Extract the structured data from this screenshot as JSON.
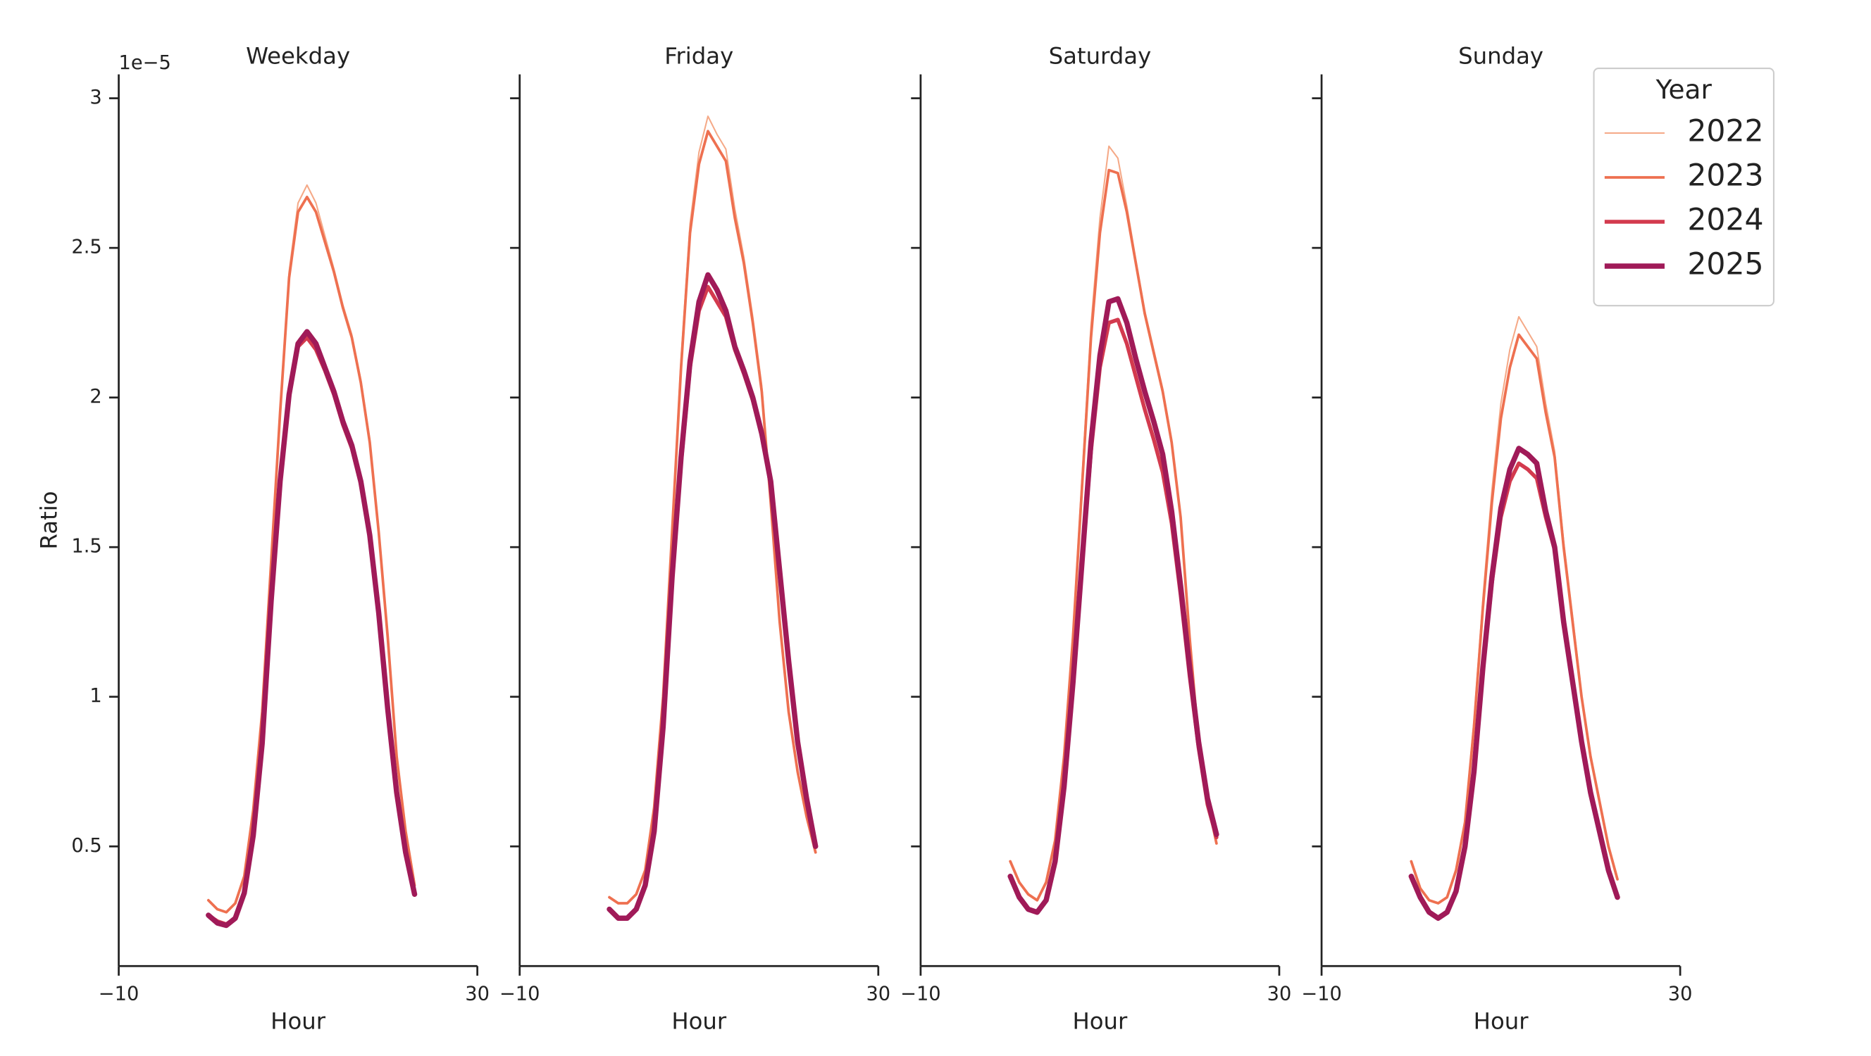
{
  "chart_data": [
    {
      "type": "line",
      "title": "Weekday",
      "xlabel": "Hour",
      "ylabel": "Ratio",
      "offset_label": "1e−5",
      "xlim": [
        -10,
        30
      ],
      "xticks": [
        {
          "value": -10,
          "label": "−10"
        },
        30
      ],
      "ylim": [
        0.1,
        3.08
      ],
      "yticks": [
        0.5,
        1.0,
        1.5,
        2.0,
        2.5,
        3.0
      ],
      "x": [
        0,
        1,
        2,
        3,
        4,
        5,
        6,
        7,
        8,
        9,
        10,
        11,
        12,
        13,
        14,
        15,
        16,
        17,
        18,
        19,
        20,
        21,
        22,
        23
      ],
      "series": [
        {
          "name": "2022",
          "color": "#f5a987",
          "linewidth": 1.2,
          "values": [
            0.32,
            0.29,
            0.28,
            0.31,
            0.4,
            0.62,
            0.96,
            1.46,
            1.97,
            2.42,
            2.65,
            2.71,
            2.65,
            2.54,
            2.43,
            2.31,
            2.21,
            2.06,
            1.86,
            1.56,
            1.21,
            0.81,
            0.56,
            0.38
          ]
        },
        {
          "name": "2023",
          "color": "#ee7050",
          "linewidth": 2.2,
          "values": [
            0.32,
            0.29,
            0.28,
            0.31,
            0.4,
            0.62,
            0.95,
            1.45,
            1.95,
            2.4,
            2.62,
            2.67,
            2.62,
            2.52,
            2.42,
            2.3,
            2.2,
            2.05,
            1.85,
            1.55,
            1.2,
            0.8,
            0.55,
            0.37
          ]
        },
        {
          "name": "2024",
          "color": "#d33a4e",
          "linewidth": 3.2,
          "values": [
            0.27,
            0.25,
            0.24,
            0.26,
            0.35,
            0.54,
            0.84,
            1.31,
            1.71,
            2.0,
            2.17,
            2.2,
            2.16,
            2.09,
            2.01,
            1.91,
            1.83,
            1.71,
            1.53,
            1.28,
            0.96,
            0.68,
            0.48,
            0.35
          ]
        },
        {
          "name": "2025",
          "color": "#a01a58",
          "linewidth": 4.4,
          "values": [
            0.27,
            0.244,
            0.236,
            0.26,
            0.344,
            0.536,
            0.844,
            1.32,
            1.72,
            2.01,
            2.18,
            2.22,
            2.18,
            2.1,
            2.02,
            1.92,
            1.84,
            1.72,
            1.54,
            1.28,
            0.96,
            0.68,
            0.48,
            0.34
          ]
        }
      ]
    },
    {
      "type": "line",
      "title": "Friday",
      "xlabel": "Hour",
      "xlim": [
        -10,
        30
      ],
      "xticks": [
        {
          "value": -10,
          "label": "−10"
        },
        30
      ],
      "ylim": [
        0.1,
        3.08
      ],
      "yticks": [
        0.5,
        1.0,
        1.5,
        2.0,
        2.5,
        3.0
      ],
      "x": [
        0,
        1,
        2,
        3,
        4,
        5,
        6,
        7,
        8,
        9,
        10,
        11,
        12,
        13,
        14,
        15,
        16,
        17,
        18,
        19,
        20,
        21,
        22,
        23
      ],
      "series": [
        {
          "name": "2022",
          "color": "#f5a987",
          "linewidth": 1.2,
          "values": [
            0.33,
            0.31,
            0.31,
            0.34,
            0.42,
            0.63,
            1.01,
            1.57,
            2.13,
            2.58,
            2.82,
            2.94,
            2.88,
            2.83,
            2.63,
            2.47,
            2.27,
            2.04,
            1.66,
            1.26,
            0.96,
            0.75,
            0.6,
            0.48
          ]
        },
        {
          "name": "2023",
          "color": "#ee7050",
          "linewidth": 2.2,
          "values": [
            0.33,
            0.31,
            0.31,
            0.34,
            0.42,
            0.63,
            1.0,
            1.55,
            2.1,
            2.55,
            2.78,
            2.89,
            2.84,
            2.79,
            2.6,
            2.45,
            2.25,
            2.02,
            1.65,
            1.25,
            0.95,
            0.75,
            0.6,
            0.48
          ]
        },
        {
          "name": "2024",
          "color": "#d33a4e",
          "linewidth": 3.2,
          "values": [
            0.29,
            0.26,
            0.26,
            0.29,
            0.37,
            0.55,
            0.89,
            1.38,
            1.78,
            2.1,
            2.29,
            2.37,
            2.32,
            2.27,
            2.16,
            2.08,
            1.99,
            1.87,
            1.71,
            1.41,
            1.11,
            0.85,
            0.66,
            0.5
          ]
        },
        {
          "name": "2025",
          "color": "#a01a58",
          "linewidth": 4.4,
          "values": [
            0.29,
            0.26,
            0.26,
            0.29,
            0.37,
            0.55,
            0.9,
            1.4,
            1.8,
            2.12,
            2.32,
            2.41,
            2.36,
            2.29,
            2.17,
            2.09,
            2.0,
            1.88,
            1.72,
            1.42,
            1.12,
            0.85,
            0.66,
            0.5
          ]
        }
      ]
    },
    {
      "type": "line",
      "title": "Saturday",
      "xlabel": "Hour",
      "xlim": [
        -10,
        30
      ],
      "xticks": [
        {
          "value": -10,
          "label": "−10"
        },
        30
      ],
      "ylim": [
        0.1,
        3.08
      ],
      "yticks": [
        0.5,
        1.0,
        1.5,
        2.0,
        2.5,
        3.0
      ],
      "x": [
        0,
        1,
        2,
        3,
        4,
        5,
        6,
        7,
        8,
        9,
        10,
        11,
        12,
        13,
        14,
        15,
        16,
        17,
        18,
        19,
        20,
        21,
        22,
        23
      ],
      "series": [
        {
          "name": "2022",
          "color": "#f5a987",
          "linewidth": 1.2,
          "values": [
            0.45,
            0.38,
            0.34,
            0.32,
            0.38,
            0.52,
            0.81,
            1.22,
            1.73,
            2.24,
            2.6,
            2.84,
            2.8,
            2.64,
            2.46,
            2.29,
            2.16,
            2.03,
            1.86,
            1.6,
            1.2,
            0.85,
            0.65,
            0.51
          ]
        },
        {
          "name": "2023",
          "color": "#ee7050",
          "linewidth": 2.2,
          "values": [
            0.45,
            0.38,
            0.34,
            0.32,
            0.38,
            0.52,
            0.8,
            1.2,
            1.7,
            2.2,
            2.55,
            2.76,
            2.75,
            2.62,
            2.45,
            2.28,
            2.15,
            2.02,
            1.85,
            1.6,
            1.2,
            0.85,
            0.65,
            0.51
          ]
        },
        {
          "name": "2024",
          "color": "#d33a4e",
          "linewidth": 3.2,
          "values": [
            0.4,
            0.33,
            0.29,
            0.28,
            0.32,
            0.45,
            0.7,
            1.05,
            1.44,
            1.82,
            2.1,
            2.25,
            2.26,
            2.18,
            2.07,
            1.96,
            1.86,
            1.75,
            1.58,
            1.34,
            1.07,
            0.83,
            0.64,
            0.53
          ]
        },
        {
          "name": "2025",
          "color": "#a01a58",
          "linewidth": 4.4,
          "values": [
            0.4,
            0.33,
            0.29,
            0.28,
            0.32,
            0.45,
            0.7,
            1.05,
            1.45,
            1.85,
            2.14,
            2.32,
            2.33,
            2.25,
            2.13,
            2.02,
            1.92,
            1.81,
            1.62,
            1.37,
            1.1,
            0.85,
            0.66,
            0.54
          ]
        }
      ]
    },
    {
      "type": "line",
      "title": "Sunday",
      "xlabel": "Hour",
      "legend_title": "Year",
      "legend": "upper right",
      "xlim": [
        -10,
        30
      ],
      "xticks": [
        {
          "value": -10,
          "label": "−10"
        },
        30
      ],
      "ylim": [
        0.1,
        3.08
      ],
      "yticks": [
        0.5,
        1.0,
        1.5,
        2.0,
        2.5,
        3.0
      ],
      "x": [
        0,
        1,
        2,
        3,
        4,
        5,
        6,
        7,
        8,
        9,
        10,
        11,
        12,
        13,
        14,
        15,
        16,
        17,
        18,
        19,
        20,
        21,
        22,
        23
      ],
      "series": [
        {
          "name": "2022",
          "color": "#f5a987",
          "linewidth": 1.2,
          "values": [
            0.45,
            0.36,
            0.32,
            0.31,
            0.33,
            0.42,
            0.59,
            0.92,
            1.33,
            1.69,
            1.98,
            2.16,
            2.27,
            2.22,
            2.17,
            1.98,
            1.82,
            1.52,
            1.27,
            1.01,
            0.81,
            0.65,
            0.5,
            0.39
          ]
        },
        {
          "name": "2023",
          "color": "#ee7050",
          "linewidth": 2.2,
          "values": [
            0.45,
            0.36,
            0.32,
            0.31,
            0.33,
            0.42,
            0.58,
            0.9,
            1.3,
            1.65,
            1.93,
            2.1,
            2.21,
            2.17,
            2.13,
            1.95,
            1.8,
            1.5,
            1.25,
            1.0,
            0.8,
            0.65,
            0.5,
            0.39
          ]
        },
        {
          "name": "2024",
          "color": "#d33a4e",
          "linewidth": 3.2,
          "values": [
            0.4,
            0.33,
            0.28,
            0.26,
            0.28,
            0.35,
            0.5,
            0.75,
            1.09,
            1.38,
            1.6,
            1.72,
            1.78,
            1.76,
            1.73,
            1.6,
            1.49,
            1.25,
            1.05,
            0.85,
            0.68,
            0.55,
            0.42,
            0.33
          ]
        },
        {
          "name": "2025",
          "color": "#a01a58",
          "linewidth": 4.4,
          "values": [
            0.4,
            0.33,
            0.28,
            0.26,
            0.28,
            0.35,
            0.5,
            0.75,
            1.1,
            1.4,
            1.63,
            1.76,
            1.83,
            1.81,
            1.78,
            1.62,
            1.5,
            1.25,
            1.05,
            0.85,
            0.68,
            0.55,
            0.42,
            0.33
          ]
        }
      ]
    }
  ]
}
